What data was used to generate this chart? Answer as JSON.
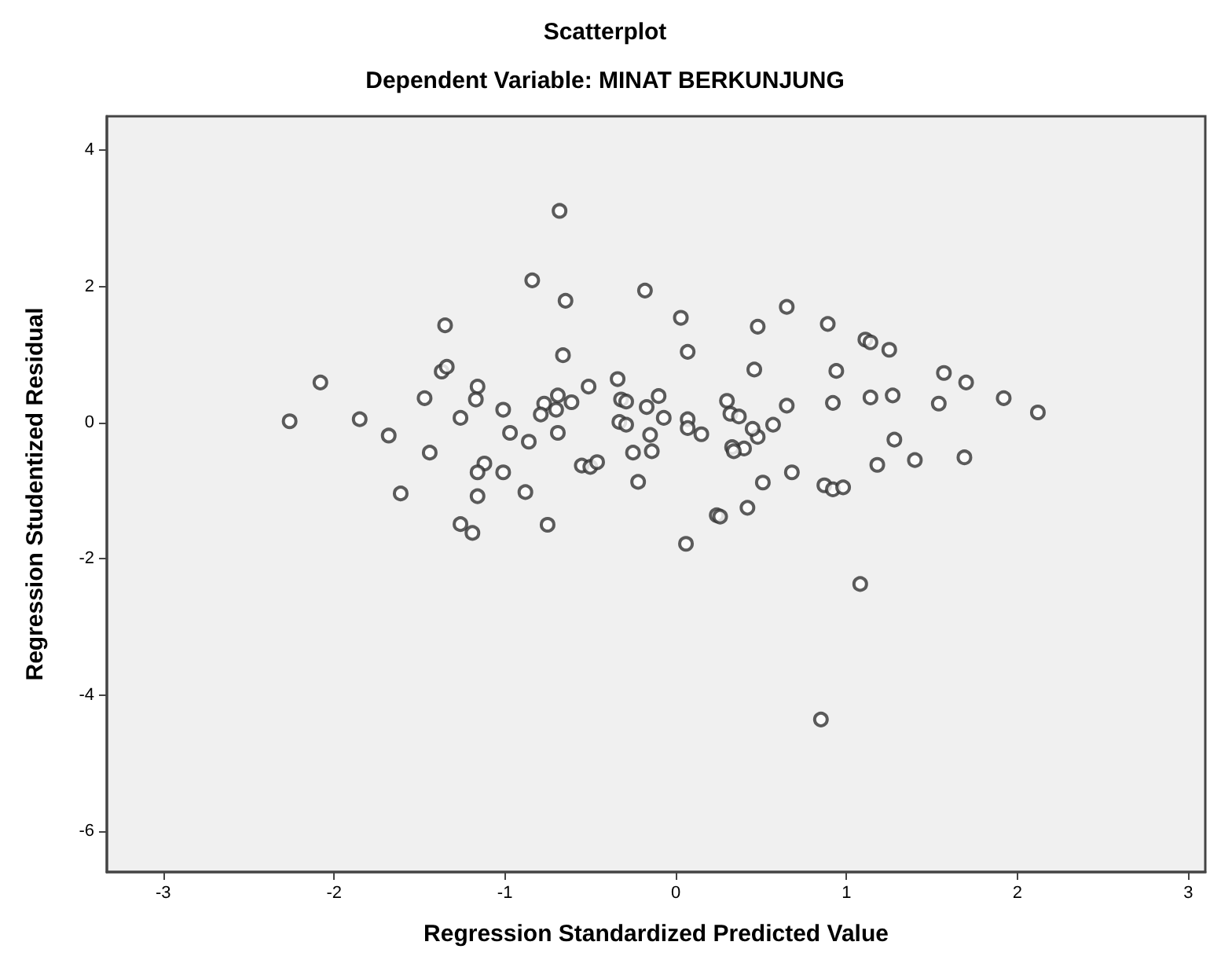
{
  "chart_data": {
    "type": "scatter",
    "title": "Scatterplot",
    "subtitle": "Dependent Variable: MINAT BERKUNJUNG",
    "xlabel": "Regression Standardized Predicted Value",
    "ylabel": "Regression Studentized Residual",
    "marker": "circle",
    "grid": false,
    "xlim": [
      -3.33,
      3.1
    ],
    "xticks": [
      -3,
      -2,
      -1,
      0,
      1,
      2,
      3
    ],
    "ylim": [
      -6.6,
      4.5
    ],
    "yticks": [
      -6,
      -4,
      -2,
      0,
      2,
      4
    ],
    "series": [
      {
        "color": "#333333",
        "x": [
          -0.68,
          -0.84,
          -0.645,
          -0.18,
          -1.35,
          -0.66,
          -2.08,
          -1.37,
          -1.34,
          -2.26,
          -1.85,
          -1.68,
          -1.47,
          -1.44,
          -1.16,
          -1.17,
          -1.26,
          -1.01,
          -0.97,
          -0.86,
          -1.12,
          -1.16,
          -1.01,
          -1.61,
          -1.16,
          -0.88,
          -0.77,
          -0.69,
          -0.7,
          -0.79,
          -0.61,
          -0.51,
          -0.69,
          -0.34,
          -0.32,
          -0.29,
          -0.33,
          -0.29,
          -0.17,
          -0.15,
          -0.25,
          -0.55,
          -0.5,
          -0.46,
          -0.22,
          -1.26,
          -1.19,
          -0.75,
          0.03,
          0.07,
          0.65,
          0.48,
          0.89,
          1.11,
          1.14,
          1.25,
          0.46,
          0.94,
          1.57,
          1.7,
          1.92,
          2.12,
          1.54,
          1.14,
          1.27,
          0.92,
          0.65,
          0.57,
          0.48,
          0.45,
          0.3,
          0.32,
          0.37,
          0.4,
          0.33,
          0.34,
          0.15,
          0.07,
          0.07,
          -0.07,
          -0.1,
          -0.14,
          0.51,
          0.68,
          0.87,
          0.92,
          0.98,
          1.18,
          1.4,
          1.69,
          1.28,
          0.42,
          0.24,
          0.26,
          0.06,
          1.08,
          0.85
        ],
        "values": [
          3.11,
          2.09,
          1.79,
          1.94,
          1.43,
          0.99,
          0.59,
          0.75,
          0.82,
          0.02,
          0.05,
          -0.19,
          0.36,
          -0.44,
          0.53,
          0.34,
          0.07,
          0.19,
          -0.15,
          -0.28,
          -0.6,
          -0.73,
          -0.73,
          -1.04,
          -1.08,
          -1.02,
          0.28,
          0.4,
          0.19,
          0.12,
          0.3,
          0.53,
          -0.15,
          0.64,
          0.34,
          0.31,
          0.01,
          -0.03,
          0.23,
          -0.18,
          -0.44,
          -0.63,
          -0.65,
          -0.58,
          -0.87,
          -1.49,
          -1.62,
          -1.5,
          1.54,
          1.04,
          1.7,
          1.41,
          1.45,
          1.22,
          1.18,
          1.07,
          0.78,
          0.76,
          0.73,
          0.59,
          0.36,
          0.15,
          0.28,
          0.37,
          0.4,
          0.29,
          0.25,
          -0.03,
          -0.21,
          -0.09,
          0.32,
          0.13,
          0.09,
          -0.38,
          -0.36,
          -0.42,
          -0.17,
          0.05,
          -0.08,
          0.07,
          0.39,
          -0.42,
          -0.88,
          -0.73,
          -0.92,
          -0.98,
          -0.95,
          -0.62,
          -0.55,
          -0.51,
          -0.25,
          -1.25,
          -1.36,
          -1.38,
          -1.78,
          -2.37,
          -4.36
        ]
      }
    ]
  }
}
